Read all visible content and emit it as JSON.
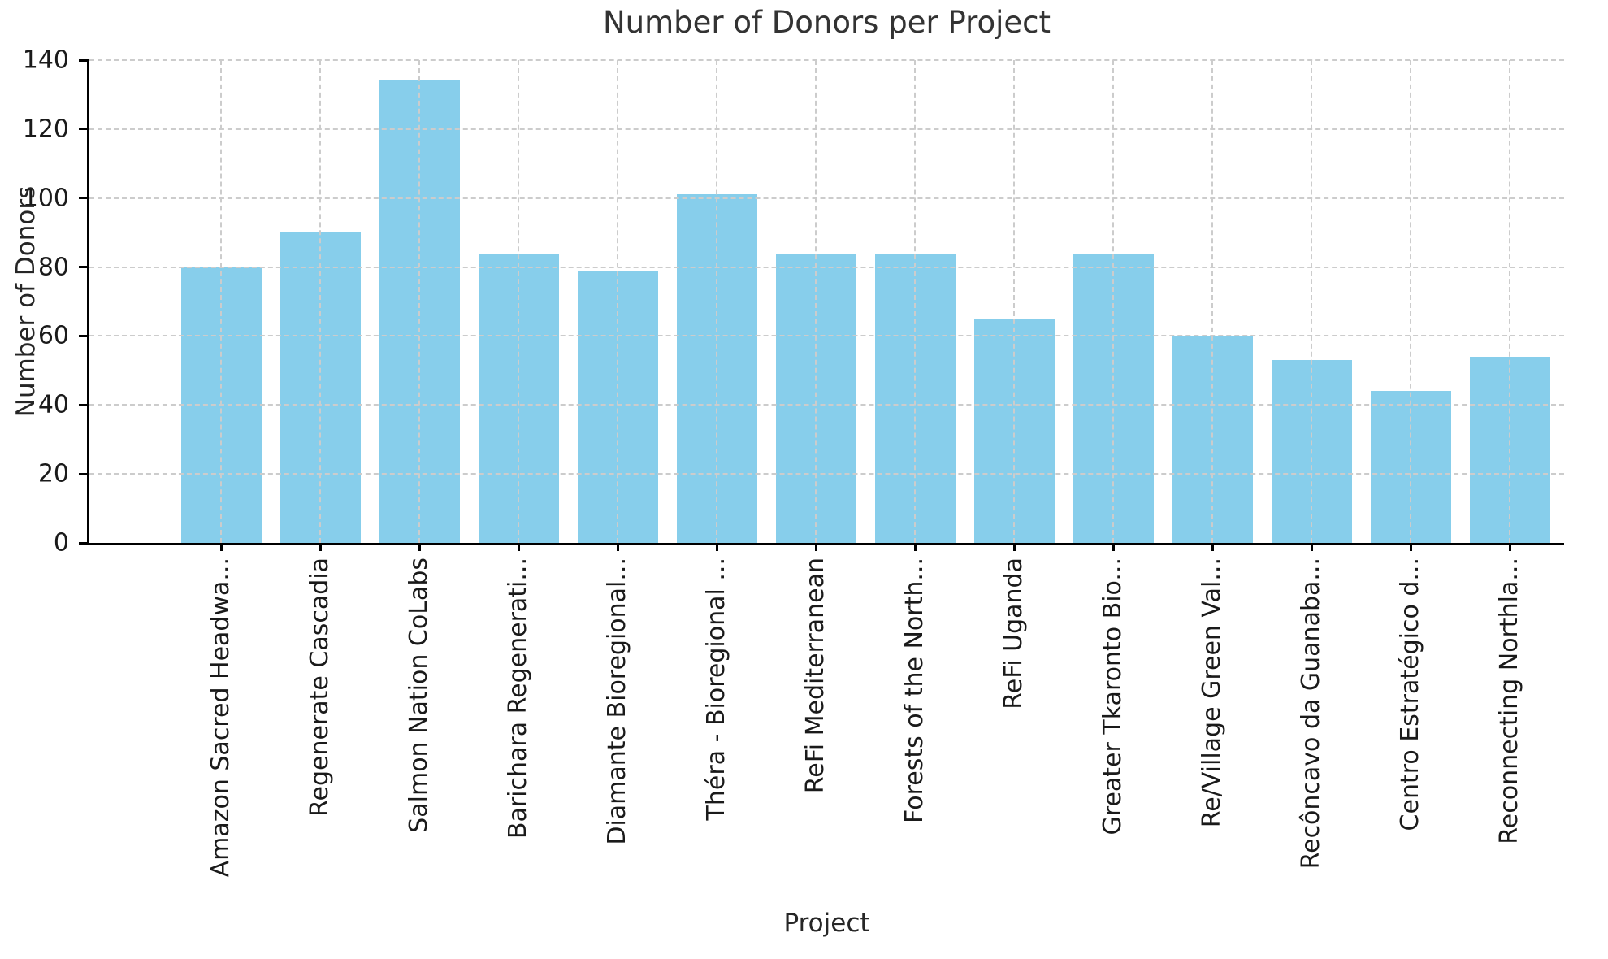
{
  "chart_data": {
    "type": "bar",
    "title": "Number of Donors per Project",
    "xlabel": "Project",
    "ylabel": "Number of Donors",
    "categories": [
      "Amazon Sacred Headwa...",
      "Regenerate Cascadia",
      "Salmon Nation CoLabs",
      "Barichara Regenerati...",
      "Diamante Bioregional...",
      "Théra - Bioregional ...",
      "ReFi Mediterranean",
      "Forests of the North...",
      "ReFi Uganda",
      "Greater Tkaronto Bio...",
      "Re/Village Green Val...",
      "Recôncavo da Guanaba...",
      "Centro Estratégico d...",
      "Reconnecting Northla..."
    ],
    "values": [
      80,
      90,
      134,
      84,
      79,
      101,
      84,
      84,
      65,
      84,
      60,
      53,
      44,
      54
    ],
    "ylim": [
      0,
      140
    ],
    "yticks": [
      0,
      20,
      40,
      60,
      80,
      100,
      120,
      140
    ],
    "grid": true,
    "grid_style": "dashed",
    "legend_position": "none",
    "bar_color": "#87ceeb",
    "grid_color": "#cccccc",
    "tick_text_color": "#1a1a1a",
    "axis_text_color": "#262626",
    "title_color": "#333333",
    "spine_color": "#000000"
  }
}
